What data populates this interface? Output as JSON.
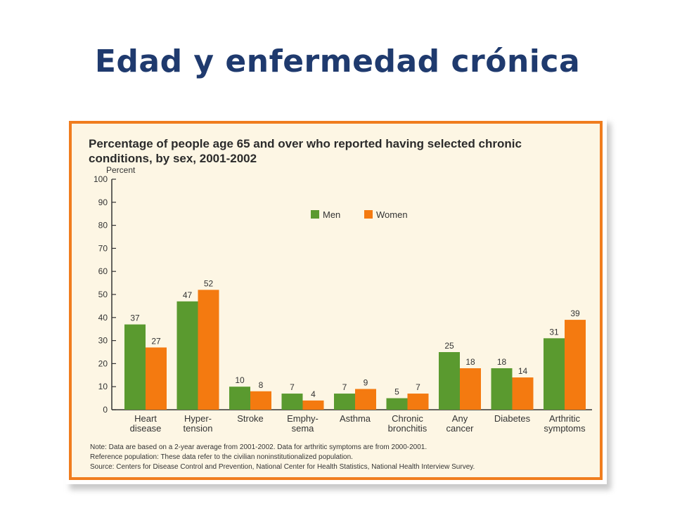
{
  "slide": {
    "title": "Edad y enfermedad crónica"
  },
  "figure": {
    "notes": [
      "Note: Data are based on a 2-year average from 2001-2002. Data for arthritic symptoms are from 2000-2001.",
      "Reference population: These data refer to the civilian noninstitutionalized population.",
      "Source: Centers for Disease Control and Prevention, National Center for Health Statistics, National Health Interview Survey."
    ]
  },
  "chart_data": {
    "type": "bar",
    "title": "Percentage of people age 65 and over who reported having selected chronic conditions, by sex, 2001-2002",
    "ylabel": "Percent",
    "xlabel": "",
    "ylim": [
      0,
      100
    ],
    "yticks": [
      0,
      10,
      20,
      30,
      40,
      50,
      60,
      70,
      80,
      90,
      100
    ],
    "categories": [
      [
        "Heart",
        "disease"
      ],
      [
        "Hyper-",
        "tension"
      ],
      [
        "Stroke"
      ],
      [
        "Emphy-",
        "sema"
      ],
      [
        "Asthma"
      ],
      [
        "Chronic",
        "bronchitis"
      ],
      [
        "Any",
        "cancer"
      ],
      [
        "Diabetes"
      ],
      [
        "Arthritic",
        "symptoms"
      ]
    ],
    "series": [
      {
        "name": "Men",
        "color": "#5a9a2f",
        "values": [
          37,
          47,
          10,
          7,
          7,
          5,
          25,
          18,
          31
        ]
      },
      {
        "name": "Women",
        "color": "#f47a10",
        "values": [
          27,
          52,
          8,
          4,
          9,
          7,
          18,
          14,
          39
        ]
      }
    ],
    "legend": {
      "position": "top-center"
    },
    "grid": false
  }
}
